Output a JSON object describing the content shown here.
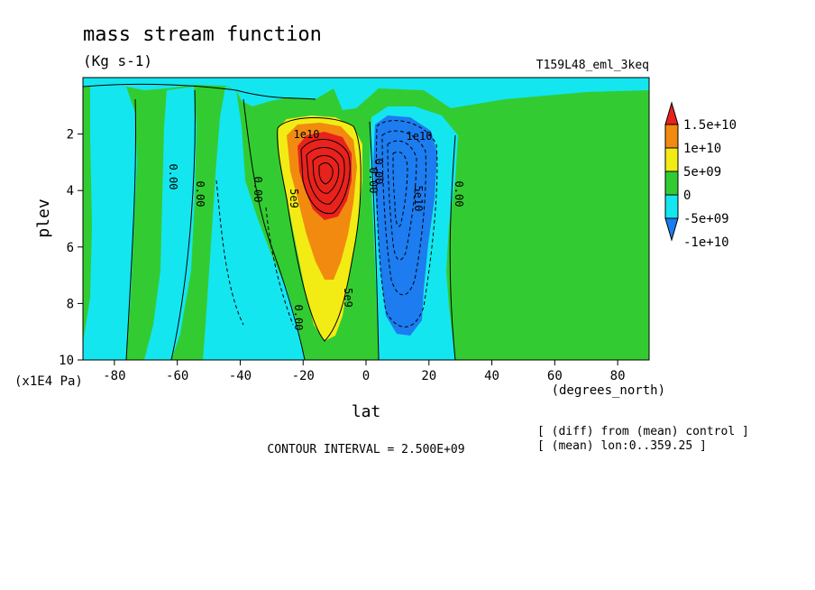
{
  "chart_data": {
    "type": "heatmap",
    "title": "mass stream function",
    "units": "(Kg s-1)",
    "run_label": "T159L48_eml_3keq",
    "xlabel": "lat",
    "x_units": "(degrees_north)",
    "ylabel": "plev",
    "y_units": "(x1E4 Pa)",
    "xlim": [
      -90,
      90
    ],
    "ylim": [
      10,
      0
    ],
    "x_ticks": [
      -80,
      -60,
      -40,
      -20,
      0,
      20,
      40,
      60,
      80
    ],
    "y_ticks": [
      2,
      4,
      6,
      8,
      10
    ],
    "x_tick_labels": [
      "-80",
      "-60",
      "-40",
      "-20",
      "0",
      "20",
      "40",
      "60",
      "80"
    ],
    "y_tick_labels": [
      "2",
      "4",
      "6",
      "8",
      "10"
    ],
    "contour_interval_text": "CONTOUR INTERVAL = 2.500E+09",
    "notes": [
      "[ (diff) from (mean) control ]",
      "[ (mean) lon:0..359.25 ]"
    ],
    "colorbar": {
      "labels": [
        "1.5e+10",
        "1e+10",
        "5e+09",
        "0",
        "-5e+09",
        "-1e+10"
      ],
      "levels": [
        15000000000,
        10000000000,
        5000000000,
        0,
        -5000000000,
        -10000000000
      ],
      "colors": [
        "#e8221c",
        "#f28a10",
        "#f2ec14",
        "#32cc32",
        "#14e6f0",
        "#1c7cf0"
      ]
    },
    "contour_labels": [
      "0.00",
      "0.00",
      "0.00",
      "5e9",
      "1e10",
      "5e9",
      "0.00",
      "0.00",
      "1e10",
      "5e10",
      "0.00",
      "0.00"
    ],
    "features": [
      {
        "name": "positive cell",
        "center_lat": -10,
        "center_plev": 3.1,
        "peak": 17500000000
      },
      {
        "name": "negative cell",
        "center_lat": 8,
        "center_plev": 3.6,
        "peak": -12500000000
      }
    ]
  }
}
